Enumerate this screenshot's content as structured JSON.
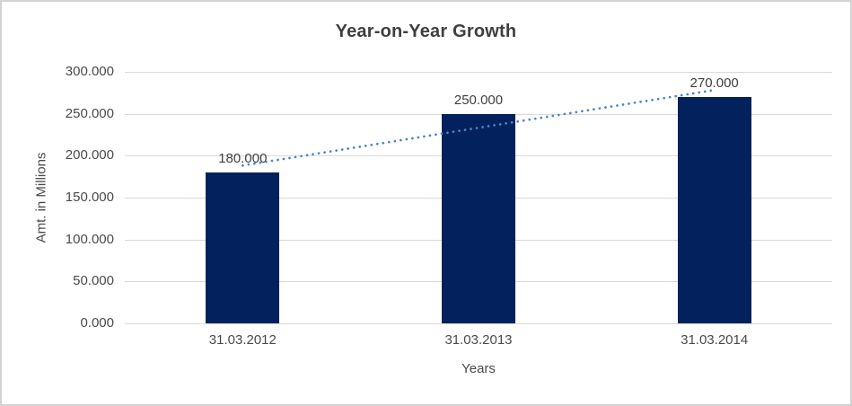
{
  "chart_data": {
    "type": "bar",
    "title": "Year-on-Year Growth",
    "xlabel": "Years",
    "ylabel": "Amt. in Millions",
    "categories": [
      "31.03.2012",
      "31.03.2013",
      "31.03.2014"
    ],
    "values": [
      180,
      250,
      270
    ],
    "data_labels": [
      "180.000",
      "250.000",
      "270.000"
    ],
    "y_ticks": [
      "0.000",
      "50.000",
      "100.000",
      "150.000",
      "200.000",
      "250.000",
      "300.000"
    ],
    "ylim": [
      0,
      300
    ],
    "grid": true,
    "legend": "none",
    "bar_color": "#03215c",
    "gridline_color": "#d9d9d9",
    "trendline": {
      "style": "dotted",
      "color": "#4a86c8",
      "start_value": 188.3,
      "end_value": 278.3
    }
  }
}
